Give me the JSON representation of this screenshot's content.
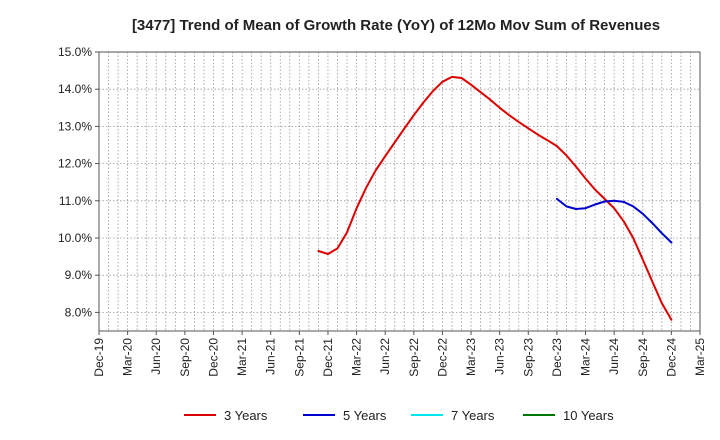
{
  "chart_data": {
    "type": "line",
    "title": "[3477]  Trend of Mean of Growth Rate (YoY) of 12Mo Mov Sum of Revenues",
    "xlabel": "",
    "ylabel": "",
    "ylim": [
      7.5,
      15.0
    ],
    "yticks": [
      8.0,
      9.0,
      10.0,
      11.0,
      12.0,
      13.0,
      14.0,
      15.0
    ],
    "ytick_labels": [
      "8.0%",
      "9.0%",
      "10.0%",
      "11.0%",
      "12.0%",
      "13.0%",
      "14.0%",
      "15.0%"
    ],
    "xlim_months": [
      0,
      63
    ],
    "xticks": [
      0,
      3,
      6,
      9,
      12,
      15,
      18,
      21,
      24,
      27,
      30,
      33,
      36,
      39,
      42,
      45,
      48,
      51,
      54,
      57,
      60,
      63
    ],
    "xtick_labels": [
      "Dec-19",
      "Mar-20",
      "Jun-20",
      "Sep-20",
      "Dec-20",
      "Mar-21",
      "Jun-21",
      "Sep-21",
      "Dec-21",
      "Mar-22",
      "Jun-22",
      "Sep-22",
      "Dec-22",
      "Mar-23",
      "Jun-23",
      "Sep-23",
      "Dec-23",
      "Mar-24",
      "Jun-24",
      "Sep-24",
      "Dec-24",
      "Mar-25"
    ],
    "grid": true,
    "legend_position": "bottom",
    "series": [
      {
        "name": "3 Years",
        "color": "#dd0000",
        "x": [
          23,
          24,
          25,
          26,
          27,
          28,
          29,
          30,
          31,
          32,
          33,
          34,
          35,
          36,
          37,
          38,
          39,
          40,
          41,
          42,
          43,
          44,
          45,
          46,
          47,
          48,
          49,
          50,
          51,
          52,
          53,
          54,
          55,
          56,
          57,
          58,
          59,
          60
        ],
        "values": [
          9.65,
          9.57,
          9.72,
          10.15,
          10.8,
          11.35,
          11.82,
          12.2,
          12.57,
          12.94,
          13.3,
          13.64,
          13.95,
          14.2,
          14.33,
          14.3,
          14.12,
          13.92,
          13.72,
          13.5,
          13.3,
          13.12,
          12.95,
          12.78,
          12.63,
          12.47,
          12.22,
          11.92,
          11.6,
          11.3,
          11.05,
          10.8,
          10.45,
          10.0,
          9.42,
          8.83,
          8.25,
          7.8
        ]
      },
      {
        "name": "5 Years",
        "color": "#0000cc",
        "x": [
          48,
          49,
          50,
          51,
          52,
          53,
          54,
          55,
          56,
          57,
          58,
          59,
          60
        ],
        "values": [
          11.05,
          10.85,
          10.78,
          10.8,
          10.9,
          10.98,
          11.0,
          10.97,
          10.85,
          10.65,
          10.4,
          10.13,
          9.88
        ]
      },
      {
        "name": "7 Years",
        "color": "#00e5ee",
        "x": [],
        "values": []
      },
      {
        "name": "10 Years",
        "color": "#007700",
        "x": [],
        "values": []
      }
    ]
  }
}
